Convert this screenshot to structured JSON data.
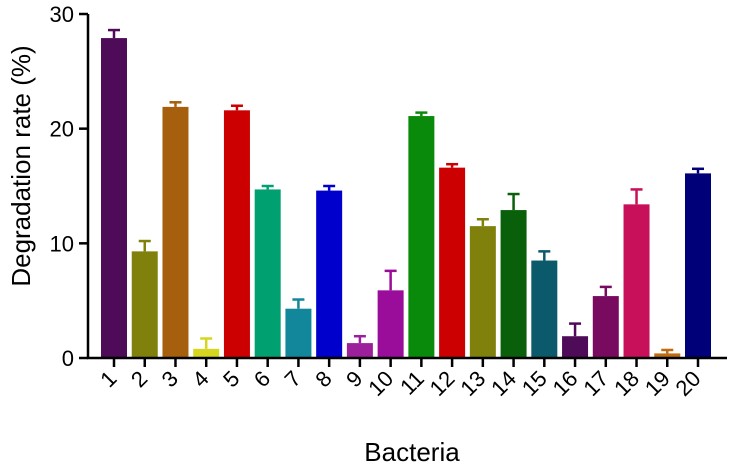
{
  "chart_data": {
    "type": "bar",
    "title": "",
    "xlabel": "Bacteria",
    "ylabel": "Degradation rate (%)",
    "ylim": [
      0,
      30
    ],
    "yticks": [
      0,
      10,
      20,
      30
    ],
    "grid": false,
    "legend": "none",
    "error_bars": true,
    "categories": [
      "1",
      "2",
      "3",
      "4",
      "5",
      "6",
      "7",
      "8",
      "9",
      "10",
      "11",
      "12",
      "13",
      "14",
      "15",
      "16",
      "17",
      "18",
      "19",
      "20"
    ],
    "values": [
      27.9,
      9.3,
      21.9,
      0.8,
      21.6,
      14.7,
      4.3,
      14.6,
      1.3,
      5.9,
      21.1,
      16.6,
      11.5,
      12.9,
      8.5,
      1.9,
      5.4,
      13.4,
      0.4,
      16.1
    ],
    "errors": [
      0.7,
      0.9,
      0.4,
      0.9,
      0.4,
      0.3,
      0.8,
      0.4,
      0.6,
      1.7,
      0.3,
      0.3,
      0.6,
      1.4,
      0.8,
      1.1,
      0.8,
      1.3,
      0.3,
      0.4
    ],
    "colors": [
      "#4e0b57",
      "#80800d",
      "#a65f0d",
      "#d6d620",
      "#cc0000",
      "#00a070",
      "#12869a",
      "#0000cc",
      "#9c209c",
      "#9a0c9a",
      "#0a8a0a",
      "#cc0000",
      "#80800d",
      "#0a600a",
      "#0b5a6b",
      "#4e0b57",
      "#780a60",
      "#c8105a",
      "#c06a12",
      "#000078"
    ]
  }
}
